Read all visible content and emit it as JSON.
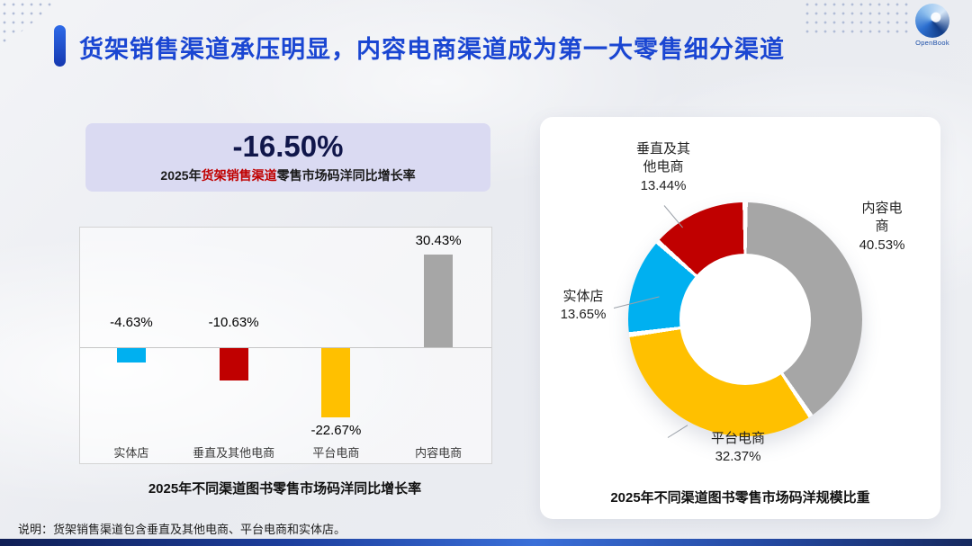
{
  "slide": {
    "title": "货架销售渠道承压明显，内容电商渠道成为第一大零售细分渠道",
    "logo_text": "OpenBook",
    "footnote": "说明：货架销售渠道包含垂直及其他电商、平台电商和实体店。"
  },
  "highlight": {
    "value": "-16.50%",
    "caption_prefix": "2025年",
    "caption_highlight": "货架销售渠道",
    "caption_suffix": "零售市场码洋同比增长率"
  },
  "chart_data": [
    {
      "type": "bar",
      "title": "2025年不同渠道图书零售市场码洋同比增长率",
      "categories": [
        "实体店",
        "垂直及其他电商",
        "平台电商",
        "内容电商"
      ],
      "values": [
        -4.63,
        -10.63,
        -22.67,
        30.43
      ],
      "value_labels": [
        "-4.63%",
        "-10.63%",
        "-22.67%",
        "30.43%"
      ],
      "colors": [
        "#00b0f0",
        "#c00000",
        "#ffc000",
        "#a6a6a6"
      ],
      "ylabel": "",
      "xlabel": "",
      "ylim": [
        -25,
        35
      ],
      "grid": false,
      "legend": "none"
    },
    {
      "type": "pie",
      "subtype": "donut",
      "title": "2025年不同渠道图书零售市场码洋规模比重",
      "categories": [
        "内容电商",
        "平台电商",
        "实体店",
        "垂直及其他电商"
      ],
      "values": [
        40.53,
        32.37,
        13.65,
        13.44
      ],
      "value_labels": [
        "40.53%",
        "32.37%",
        "13.65%",
        "13.44%"
      ],
      "colors": [
        "#a6a6a6",
        "#ffc000",
        "#00b0f0",
        "#c00000"
      ],
      "legend": "none"
    }
  ]
}
